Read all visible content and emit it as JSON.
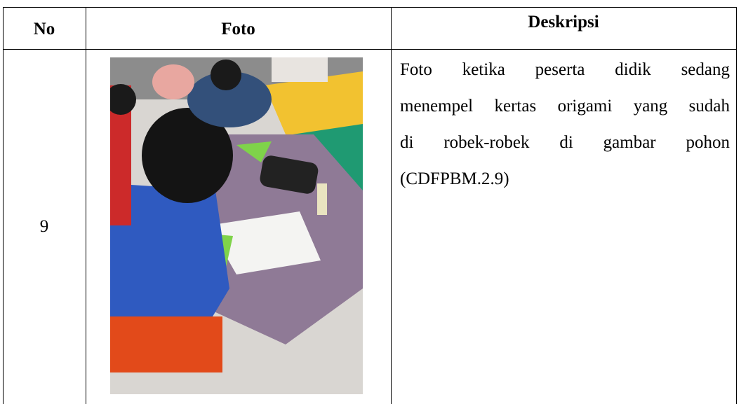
{
  "table": {
    "headers": [
      "No",
      "Foto",
      "Deskripsi"
    ],
    "rows": [
      [
        "9",
        [
          "Foto ketika peserta didik sedang",
          "menempel kertas origami yang sudah",
          "di robek-robek di gambar pohon",
          "(CDFPBM.2.9)"
        ]
      ]
    ]
  }
}
